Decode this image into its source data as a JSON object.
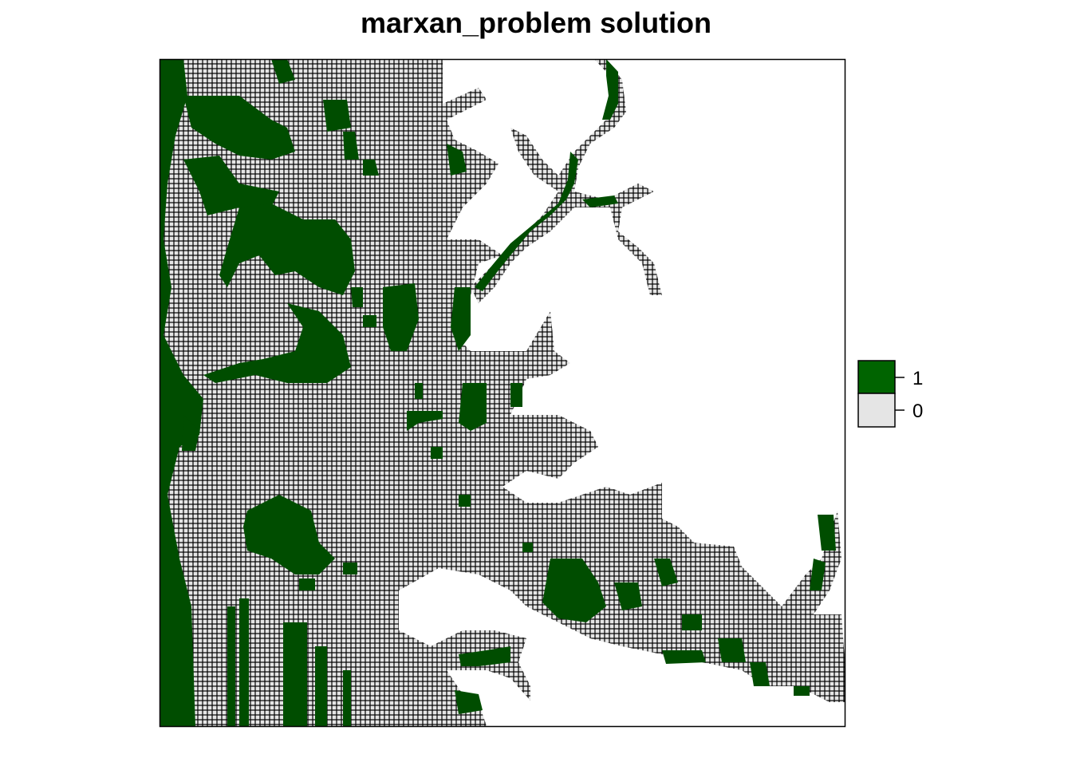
{
  "title": "marxan_problem solution",
  "colors": {
    "selected": "#006400",
    "not_selected": "#e5e5e5",
    "cell_border": "#000000",
    "background": "#ffffff"
  },
  "legend": {
    "items": [
      {
        "label": "1",
        "color": "#006400"
      },
      {
        "label": "0",
        "color": "#e5e5e5"
      }
    ]
  }
}
